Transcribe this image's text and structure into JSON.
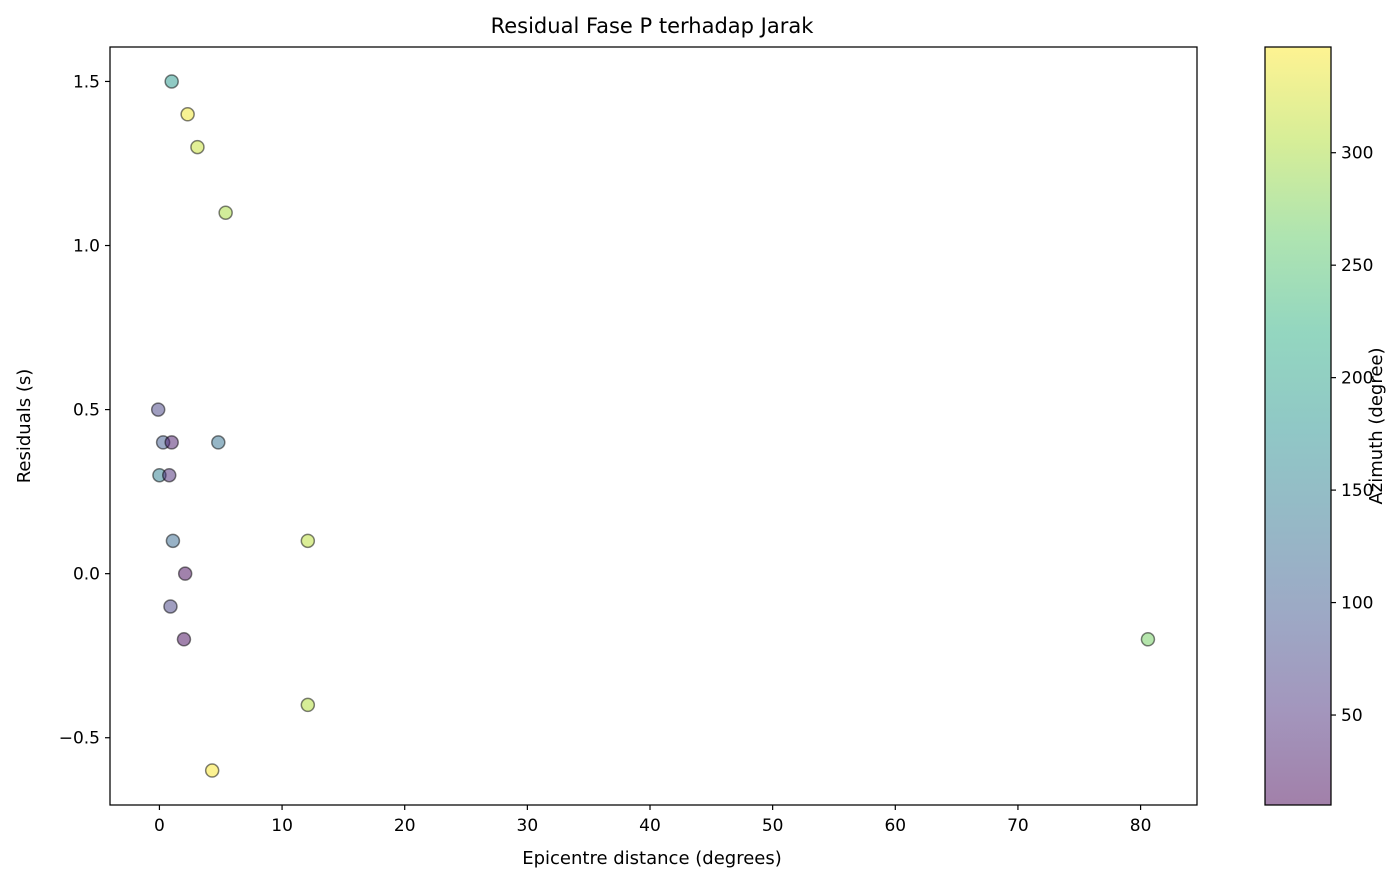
{
  "chart_data": {
    "type": "scatter",
    "title": "Residual Fase P terhadap Jarak",
    "xlabel": "Epicentre distance (degrees)",
    "ylabel": "Residuals (s)",
    "xlim": [
      -4.03,
      84.6
    ],
    "ylim": [
      -0.705,
      1.605
    ],
    "x_ticks": [
      0,
      10,
      20,
      30,
      40,
      50,
      60,
      70,
      80
    ],
    "y_ticks": [
      -0.5,
      0.0,
      0.5,
      1.0,
      1.5
    ],
    "y_tick_labels": [
      "−0.5",
      "0.0",
      "0.5",
      "1.0",
      "1.5"
    ],
    "grid": false,
    "colorbar": {
      "label": "Azimuth (degree)",
      "range": [
        10,
        347
      ],
      "ticks": [
        50,
        100,
        150,
        200,
        250,
        300
      ],
      "colormap": "viridis",
      "alpha": 0.5
    },
    "points": [
      {
        "x": 1.0,
        "y": 1.5,
        "c": 185
      },
      {
        "x": 2.3,
        "y": 1.4,
        "c": 340
      },
      {
        "x": 3.1,
        "y": 1.3,
        "c": 318
      },
      {
        "x": 5.4,
        "y": 1.1,
        "c": 300
      },
      {
        "x": -0.1,
        "y": 0.5,
        "c": 70
      },
      {
        "x": 0.3,
        "y": 0.4,
        "c": 100
      },
      {
        "x": 1.0,
        "y": 0.4,
        "c": 30
      },
      {
        "x": 4.8,
        "y": 0.4,
        "c": 130
      },
      {
        "x": 0.0,
        "y": 0.3,
        "c": 150
      },
      {
        "x": 0.8,
        "y": 0.3,
        "c": 45
      },
      {
        "x": 1.1,
        "y": 0.1,
        "c": 120
      },
      {
        "x": 12.1,
        "y": 0.1,
        "c": 310
      },
      {
        "x": 2.1,
        "y": 0.0,
        "c": 15
      },
      {
        "x": 0.9,
        "y": -0.1,
        "c": 70
      },
      {
        "x": 2.0,
        "y": -0.2,
        "c": 15
      },
      {
        "x": 80.6,
        "y": -0.2,
        "c": 270
      },
      {
        "x": 12.1,
        "y": -0.4,
        "c": 305
      },
      {
        "x": 4.3,
        "y": -0.6,
        "c": 345
      }
    ]
  }
}
